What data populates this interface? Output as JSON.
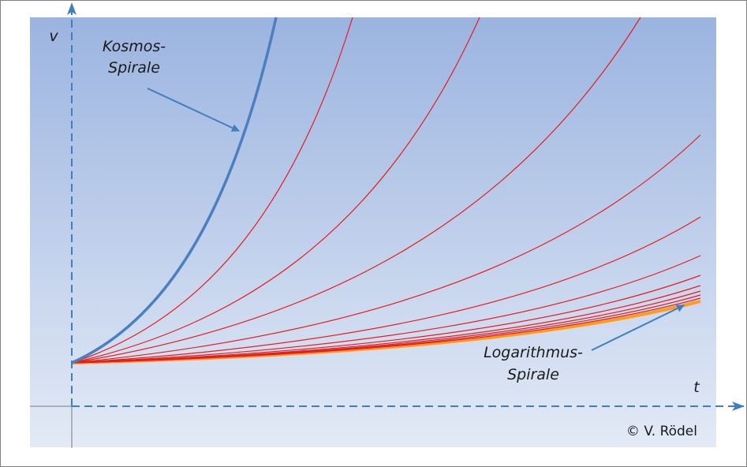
{
  "axes": {
    "y_label": "v",
    "x_label": "t"
  },
  "annotations": [
    {
      "lines": [
        "Kosmos-",
        "Spirale"
      ]
    },
    {
      "lines": [
        "Logarithmus-",
        "Spirale"
      ]
    }
  ],
  "credit": "© V. Rödel"
}
